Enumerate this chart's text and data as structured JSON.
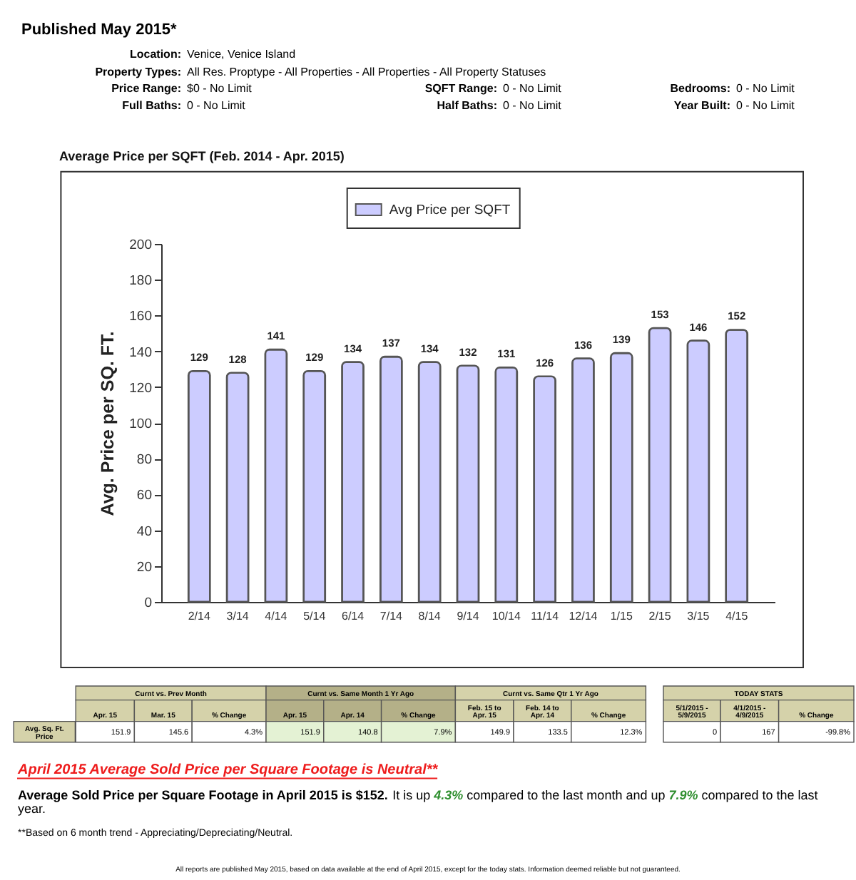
{
  "chart_data": {
    "type": "bar",
    "title": "Average Price per SQFT (Feb. 2014 - Apr. 2015)",
    "ylabel": "Avg. Price per SQ. FT.",
    "categories": [
      "2/14",
      "3/14",
      "4/14",
      "5/14",
      "6/14",
      "7/14",
      "8/14",
      "9/14",
      "10/14",
      "11/14",
      "12/14",
      "1/15",
      "2/15",
      "3/15",
      "4/15"
    ],
    "series": [
      {
        "name": "Avg Price per SQFT",
        "color": "#ccccff",
        "values": [
          129,
          128,
          141,
          129,
          134,
          137,
          134,
          132,
          131,
          126,
          136,
          139,
          153,
          146,
          152
        ]
      }
    ],
    "ylim": [
      0,
      200
    ],
    "yticks": [
      0,
      20,
      40,
      60,
      80,
      100,
      120,
      140,
      160,
      180,
      200
    ],
    "data_labels": true,
    "legend": "top",
    "annotations": [
      "Published May 2015*",
      "Location:",
      "Venice, Venice Island",
      "Property Types:",
      "All Res. Proptype - All Properties - All Properties - All Property Statuses",
      "Price Range:",
      "$0 - No Limit",
      "SQFT Range:",
      "0 - No Limit",
      "Bedrooms:",
      "0 - No Limit",
      "Full Baths:",
      "0 - No Limit",
      "Half Baths:",
      "0 - No Limit",
      "Year Built:",
      "0 - No Limit",
      "Curnt vs. Prev Month",
      "Curnt vs. Same Month 1 Yr Ago",
      "Curnt vs. Same Qtr 1 Yr Ago",
      "TODAY STATS",
      "Apr. 15",
      "Mar. 15",
      "% Change",
      "Apr. 15",
      "Apr. 14",
      "% Change",
      "Feb. 15 to Apr. 15",
      "Feb. 14 to Apr. 14",
      "% Change",
      "5/1/2015 - 5/9/2015",
      "4/1/2015 - 4/9/2015",
      "% Change",
      "Avg. Sq. Ft. Price",
      "151.9",
      "145.6",
      "4.3%",
      "151.9",
      "140.8",
      "7.9%",
      "149.9",
      "133.5",
      "12.3%",
      "0",
      "167",
      "-99.8%",
      "April 2015 Average Sold Price per Square Footage is Neutral**",
      "Average Sold Price per Square Footage in April 2015 is $152.",
      "It is up",
      "4.3%",
      "compared to the last month and up",
      "7.9%",
      "compared to the last",
      "year.",
      "**Based on 6 month trend - Appreciating/Depreciating/Neutral.",
      "All reports are published May 2015, based on data available at the end of April 2015, except for the today stats. Information deemed reliable but not guaranteed."
    ]
  }
}
